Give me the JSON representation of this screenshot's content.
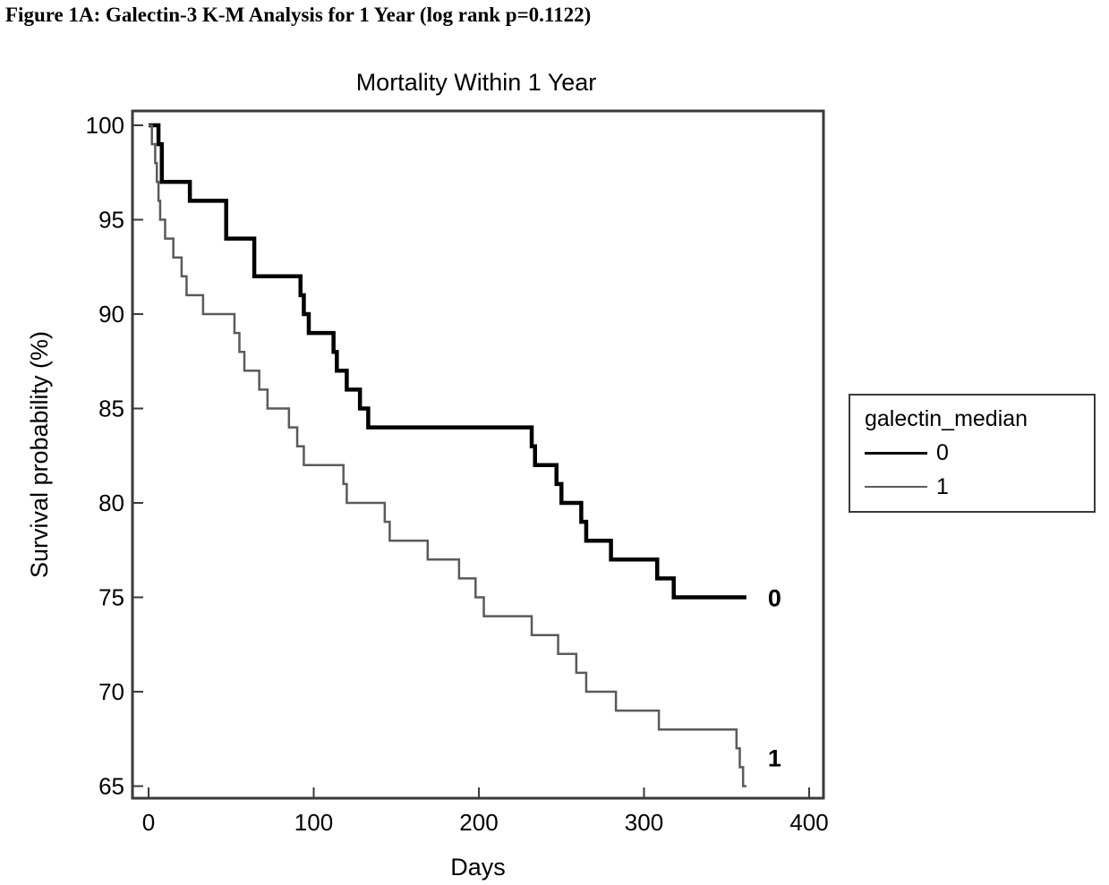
{
  "figure_title": "Figure 1A: Galectin-3 K-M Analysis for 1 Year (log rank p=0.1122)",
  "colors": {
    "series_0": "#000000",
    "series_1": "#5a5a5a",
    "frame": "#3a3a3a"
  },
  "chart_data": {
    "type": "line",
    "title": "Mortality Within 1 Year",
    "xlabel": "Days",
    "ylabel": "Survival probability (%)",
    "xlim": [
      0,
      400
    ],
    "ylim": [
      65,
      100
    ],
    "xticks": [
      0,
      100,
      200,
      300,
      400
    ],
    "yticks": [
      65,
      70,
      75,
      80,
      85,
      90,
      95,
      100
    ],
    "legend": {
      "title": "galectin_median",
      "position": "right"
    },
    "series": [
      {
        "name": "0",
        "end_label": "0",
        "step": true,
        "x": [
          0,
          5,
          6,
          8,
          25,
          47,
          64,
          92,
          94,
          97,
          112,
          114,
          120,
          128,
          133,
          232,
          234,
          237,
          247,
          250,
          253,
          262,
          265,
          280,
          288,
          308,
          310,
          318,
          320,
          362
        ],
        "y": [
          100,
          100,
          99,
          97,
          96,
          94,
          92,
          91,
          90,
          89,
          88,
          87,
          86,
          85,
          84,
          83,
          82,
          82,
          81,
          80,
          80,
          79,
          78,
          77,
          77,
          76,
          76,
          75,
          75,
          75
        ]
      },
      {
        "name": "1",
        "end_label": "1",
        "step": true,
        "x": [
          0,
          2,
          4,
          5,
          6,
          7,
          8,
          10,
          12,
          15,
          18,
          20,
          23,
          25,
          28,
          33,
          52,
          55,
          58,
          60,
          63,
          67,
          72,
          80,
          85,
          90,
          92,
          94,
          96,
          118,
          120,
          122,
          143,
          146,
          169,
          188,
          198,
          203,
          232,
          248,
          259,
          262,
          265,
          283,
          290,
          309,
          356,
          358,
          360,
          362
        ],
        "y": [
          100,
          99,
          98,
          97,
          96,
          95,
          95,
          94,
          94,
          93,
          93,
          92,
          91,
          91,
          91,
          90,
          89,
          88,
          87,
          87,
          87,
          86,
          85,
          85,
          84,
          83,
          83,
          82,
          82,
          81,
          80,
          80,
          79,
          78,
          77,
          76,
          75,
          74,
          73,
          72,
          71,
          71,
          70,
          69,
          69,
          68,
          67,
          66,
          65,
          65
        ]
      }
    ]
  }
}
